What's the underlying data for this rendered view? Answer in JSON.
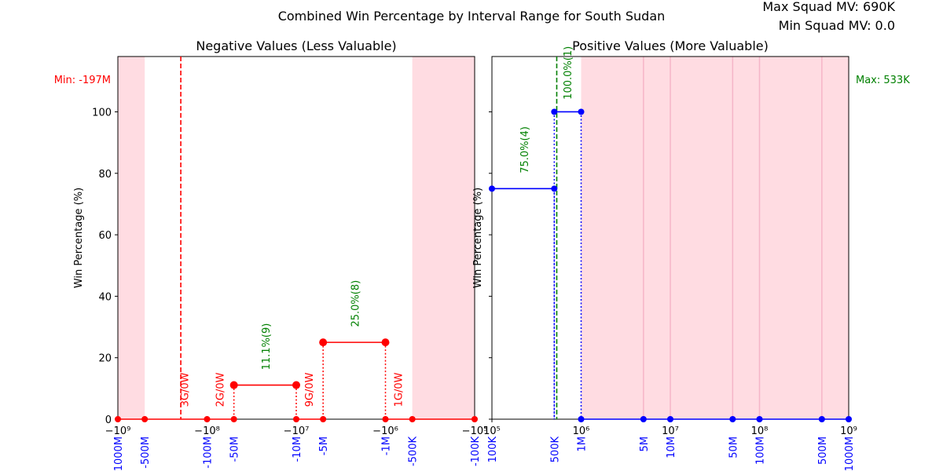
{
  "figure": {
    "suptitle": "Combined Win Percentage by Interval Range for South Sudan",
    "max_squad_mv": "Max Squad MV: 690K",
    "min_squad_mv": "Min Squad MV: 0.0"
  },
  "colors": {
    "negative_series": "#ff0000",
    "positive_series": "#0000ff",
    "annotation_green": "#008000",
    "shade": "#ffc0cb",
    "custom_tick": "#0000ff"
  },
  "chart_data": [
    {
      "type": "line",
      "title": "Negative Values (Less Valuable)",
      "xlabel": "",
      "ylabel": "Win Percentage (%)",
      "xscale": "symlog",
      "xlim": [
        -1000000000,
        -100000
      ],
      "ylim": [
        0,
        118
      ],
      "yticks": [
        0,
        20,
        40,
        60,
        80,
        100
      ],
      "ytick_labels": [
        "0",
        "20",
        "40",
        "60",
        "80",
        "100"
      ],
      "xticks": [
        -1000000000,
        -100000000,
        -10000000,
        -1000000,
        -100000
      ],
      "xtick_labels": [
        "−10⁹",
        "−10⁸",
        "−10⁷",
        "−10⁶",
        "−10⁵"
      ],
      "custom_ticks": [
        -1000000000,
        -500000000,
        -100000000,
        -50000000,
        -10000000,
        -5000000,
        -1000000,
        -500000,
        -100000
      ],
      "custom_tick_labels": [
        "-1000M",
        "-500M",
        "-100M",
        "-50M",
        "-10M",
        "-5M",
        "-1M",
        "-500K",
        "-100K"
      ],
      "shaded_ranges": [
        [
          -1000000000,
          -500000000
        ],
        [
          -500000,
          -100000
        ]
      ],
      "min_line": {
        "x": -197000000,
        "label": "Min: -197M"
      },
      "points": [
        {
          "x": -1000000000,
          "y": 0
        },
        {
          "x": -500000000,
          "y": 0
        },
        {
          "x": -100000000,
          "y": 0
        },
        {
          "x": -50000000,
          "y": 0
        },
        {
          "x": -50000000,
          "y": 11.1
        },
        {
          "x": -10000000,
          "y": 11.1
        },
        {
          "x": -10000000,
          "y": 0
        },
        {
          "x": -5000000,
          "y": 0
        },
        {
          "x": -5000000,
          "y": 25.0
        },
        {
          "x": -1000000,
          "y": 25.0
        },
        {
          "x": -1000000,
          "y": 0
        },
        {
          "x": -500000,
          "y": 0
        },
        {
          "x": -100000,
          "y": 0
        }
      ],
      "segments": [
        {
          "x1": -1000000000,
          "x2": -500000000,
          "y": 0
        },
        {
          "x1": -500000000,
          "x2": -100000000,
          "y": 0
        },
        {
          "x1": -100000000,
          "x2": -50000000,
          "y": 0
        },
        {
          "x1": -50000000,
          "x2": -10000000,
          "y": 11.1
        },
        {
          "x1": -10000000,
          "x2": -5000000,
          "y": 0
        },
        {
          "x1": -5000000,
          "x2": -1000000,
          "y": 25.0
        },
        {
          "x1": -1000000,
          "x2": -500000,
          "y": 0
        },
        {
          "x1": -500000,
          "x2": -100000,
          "y": 0
        }
      ],
      "dotted_drops": [
        {
          "x": -50000000,
          "y": 11.1
        },
        {
          "x": -10000000,
          "y": 11.1
        },
        {
          "x": -5000000,
          "y": 25.0
        },
        {
          "x": -1000000,
          "y": 25.0
        }
      ],
      "annotations": [
        {
          "text": "3G/0W",
          "x": -180000000,
          "y": 4,
          "color": "red"
        },
        {
          "text": "2G/0W",
          "x": -72000000,
          "y": 4,
          "color": "red"
        },
        {
          "text": "11.1%(9)",
          "x": -22000000,
          "y": 16,
          "color": "green"
        },
        {
          "text": "9G/0W",
          "x": -7200000,
          "y": 4,
          "color": "red"
        },
        {
          "text": "25.0%(8)",
          "x": -2200000,
          "y": 30,
          "color": "green"
        },
        {
          "text": "1G/0W",
          "x": -720000,
          "y": 4,
          "color": "red"
        }
      ]
    },
    {
      "type": "line",
      "title": "Positive Values (More Valuable)",
      "xlabel": "",
      "ylabel": "Win Percentage (%)",
      "xscale": "log",
      "xlim": [
        100000,
        1000000000
      ],
      "ylim": [
        0,
        118
      ],
      "xticks": [
        100000,
        1000000,
        10000000,
        100000000,
        1000000000
      ],
      "xtick_labels": [
        "10⁵",
        "10⁶",
        "10⁷",
        "10⁸",
        "10⁹"
      ],
      "custom_ticks": [
        100000,
        500000,
        1000000,
        5000000,
        10000000,
        50000000,
        100000000,
        500000000,
        1000000000
      ],
      "custom_tick_labels": [
        "100K",
        "500K",
        "1M",
        "5M",
        "10M",
        "50M",
        "100M",
        "500M",
        "1000M"
      ],
      "shaded_ranges": [
        [
          1000000,
          1000000000
        ]
      ],
      "max_line": {
        "x": 533000,
        "label": "Max: 533K"
      },
      "points": [
        {
          "x": 100000,
          "y": 75.0
        },
        {
          "x": 500000,
          "y": 75.0
        },
        {
          "x": 500000,
          "y": 100.0
        },
        {
          "x": 1000000,
          "y": 100.0
        },
        {
          "x": 1000000,
          "y": 0
        },
        {
          "x": 5000000,
          "y": 0
        },
        {
          "x": 10000000,
          "y": 0
        },
        {
          "x": 50000000,
          "y": 0
        },
        {
          "x": 100000000,
          "y": 0
        },
        {
          "x": 500000000,
          "y": 0
        },
        {
          "x": 1000000000,
          "y": 0
        }
      ],
      "segments": [
        {
          "x1": 100000,
          "x2": 500000,
          "y": 75.0
        },
        {
          "x1": 500000,
          "x2": 1000000,
          "y": 100.0
        },
        {
          "x1": 1000000,
          "x2": 5000000,
          "y": 0
        },
        {
          "x1": 5000000,
          "x2": 10000000,
          "y": 0
        },
        {
          "x1": 10000000,
          "x2": 50000000,
          "y": 0
        },
        {
          "x1": 50000000,
          "x2": 100000000,
          "y": 0
        },
        {
          "x1": 100000000,
          "x2": 500000000,
          "y": 0
        },
        {
          "x1": 500000000,
          "x2": 1000000000,
          "y": 0
        }
      ],
      "dotted_drops": [
        {
          "x": 500000,
          "y": 75.0
        },
        {
          "x": 500000,
          "y": 100.0
        },
        {
          "x": 1000000,
          "y": 100.0
        }
      ],
      "annotations": [
        {
          "text": "75.0%(4)",
          "x": 230000,
          "y": 80,
          "color": "green"
        },
        {
          "text": "100.0%(1)",
          "x": 700000,
          "y": 104,
          "color": "green"
        }
      ]
    }
  ]
}
